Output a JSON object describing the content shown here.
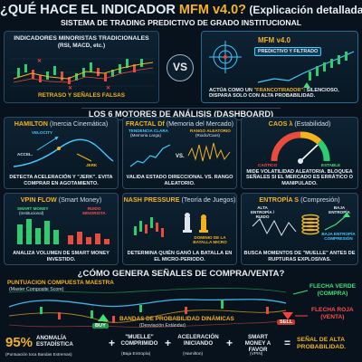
{
  "header": {
    "title_pre": "¿QUÉ HACE EL INDICADOR ",
    "title_name": "MFM v4.0?",
    "title_post": " (Explicación detallada)",
    "subtitle": "SISTEMA DE TRADING PREDICTIVO DE GRADO INSTITUCIONAL"
  },
  "comparison": {
    "left_title": "INDICADORES MINORISTAS TRADICIONALES",
    "left_subtitle": "(RSI, MACD, etc.)",
    "left_caption": "RETRASO Y SEÑALES FALSAS",
    "vs": "VS",
    "right_title": "MFM v4.0",
    "right_badge": "PREDICTIVO Y FILTRADO",
    "right_caption_pre": "ACTÚA COMO UN ",
    "right_caption_quote": "\"FRANCOTIRADOR\"",
    "right_caption_post": ": SILENCIOSO, DISPARA SOLO CON ALTA PROBABILIDAD."
  },
  "engines_title": "LOS 6 MOTORES DE ANÁLISIS (DASHBOARD)",
  "engines": {
    "hamilton": {
      "name": "HAMILTON",
      "sub": "(Inercia Cinemática)",
      "velocity": "VELOCITY",
      "accel": "ACCEL.",
      "jerk": "JERK",
      "caption": "DETECTA ACELERACIÓN Y \"JERK\". EVITA COMPRAR EN AGOTAMIENTO."
    },
    "fractal": {
      "name": "FRACTAL Df",
      "sub": "(Memoria del Mercado)",
      "trend": "TENDENCIA CLARA",
      "trend_sub": "(Memoria Larga)",
      "vs": "VS.",
      "random": "RANGO ALEATORIO",
      "random_sub": "(Ruido/Caos)",
      "caption": "VALIDA ESTADO DIRECCIONAL VS. RANGO ALEATORIO."
    },
    "chaos": {
      "name": "CAOS λ",
      "sub": "(Estabilidad)",
      "caotico": "CAÓTICO",
      "estable": "ESTABLE",
      "caption": "MIDE VOLATILIDAD ALEATORIA. BLOQUEA SEÑALES SI EL MERCADO ES ERRÁTICO O MANIPULADO."
    },
    "vpin": {
      "name": "VPIN FLOW",
      "sub": "(Smart Money)",
      "smart": "SMART MONEY",
      "smart_sub": "(Institucional)",
      "noise": "RUIDO MINORISTA",
      "caption": "ANALIZA VOLUMEN DE SMART MONEY INVESTIDO."
    },
    "nash": {
      "name": "NASH PRESSURE",
      "sub": "(Teoría de Juegos)",
      "battle": "DOMINIO DE LA BATALLA MICRO",
      "caption": "DETERMINA QUIÉN GANÓ LA BATALLA EN EL MICRO-PERIODO."
    },
    "entropy": {
      "name": "ENTROPÍA S",
      "sub": "(Compresión)",
      "high": "ALTA ENTROPÍA / RUIDO",
      "low": "BAJA ENTROPÍA",
      "comp": "BAJA ENTROPÍA COMPRESIÓN",
      "caption": "BUSCA MOMENTOS DE \"MUELLE\" ANTES DE RUPTURAS EXPLOSIVAS."
    }
  },
  "signals": {
    "title": "¿CÓMO GENERA SEÑALES DE COMPRA/VENTA?",
    "score_label": "PUNTUACIÓN COMPUESTA MAESTRA",
    "score_sub": "(Master Composite Score)",
    "bands_label": "BANDAS DE PROBABILIDAD DINÁMICAS",
    "bands_sub": "(Desviación Estándar)",
    "buy": "BUY",
    "sell": "SELL",
    "green_arrow": "FLECHA VERDE",
    "green_sub": "(COMPRA)",
    "red_arrow": "FLECHA ROJA",
    "red_sub": "(VENTA)"
  },
  "formula": {
    "pct": "95%",
    "anomaly": "ANOMALÍA ESTADÍSTICA",
    "anomaly_sub": "(Puntuación toca Bandas Extremas)",
    "plus1": "+",
    "muelle": "\"MUELLE\" COMPRIMIDO",
    "muelle_sub": "(Baja Entropía)",
    "plus2": "+",
    "accel": "ACELERACIÓN INICIANDO",
    "accel_sub": "(Hamilton)",
    "plus3": "+",
    "smart": "SMART MONEY A FAVOR",
    "smart_sub": "(VPIN)",
    "eq": "=",
    "result": "SEÑAL DE ALTA PROBABILIDAD."
  }
}
